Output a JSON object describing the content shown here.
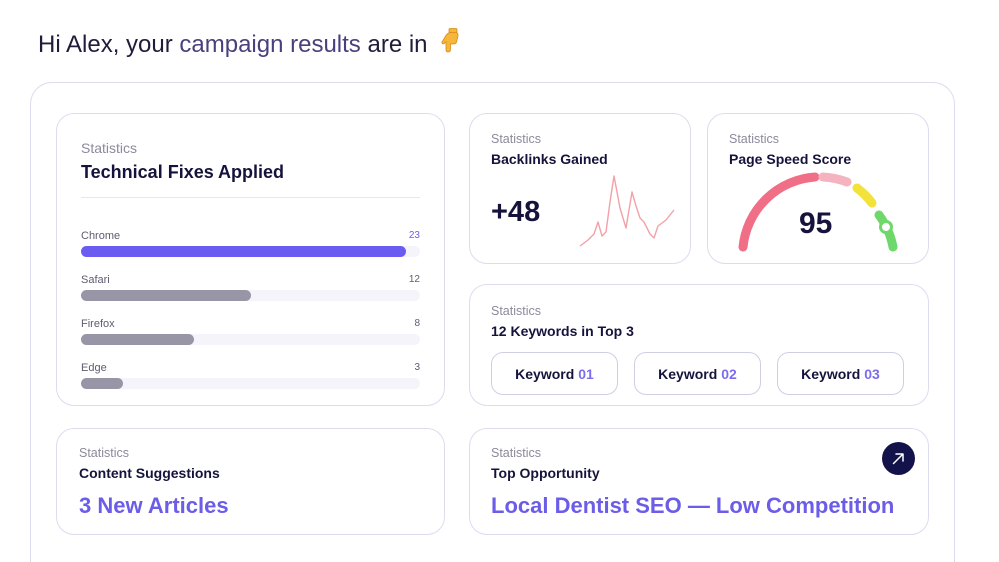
{
  "greeting": {
    "prefix": "Hi Alex, your ",
    "highlight": "campaign results",
    "suffix": " are in",
    "emoji_icon": "pointing-down-hand-icon"
  },
  "technical_fixes": {
    "eyebrow": "Statistics",
    "title": "Technical Fixes Applied",
    "max": 23,
    "items": [
      {
        "label": "Chrome",
        "value": 23,
        "accent": true
      },
      {
        "label": "Safari",
        "value": 12,
        "accent": false
      },
      {
        "label": "Firefox",
        "value": 8,
        "accent": false
      },
      {
        "label": "Edge",
        "value": 3,
        "accent": false
      }
    ]
  },
  "backlinks": {
    "eyebrow": "Statistics",
    "title": "Backlinks Gained",
    "value": "+48",
    "sparkline_color": "#f2a1a9"
  },
  "page_speed": {
    "eyebrow": "Statistics",
    "title": "Page Speed Score",
    "value": "95"
  },
  "keywords": {
    "eyebrow": "Statistics",
    "title": "12 Keywords in Top 3",
    "items": [
      {
        "label": "Keyword",
        "num": "01"
      },
      {
        "label": "Keyword",
        "num": "02"
      },
      {
        "label": "Keyword",
        "num": "03"
      }
    ]
  },
  "content": {
    "eyebrow": "Statistics",
    "title": "Content Suggestions",
    "value": "3 New Articles"
  },
  "opportunity": {
    "eyebrow": "Statistics",
    "title": "Top Opportunity",
    "value": "Local Dentist SEO — Low Competition",
    "action_icon": "arrow-up-right-icon"
  },
  "colors": {
    "accent": "#6a5cf0",
    "navy": "#15133c",
    "gauge_red": "#f06f86",
    "gauge_pink": "#f5b3c0",
    "gauge_yellow": "#f2e23a",
    "gauge_green": "#6fd86a"
  }
}
